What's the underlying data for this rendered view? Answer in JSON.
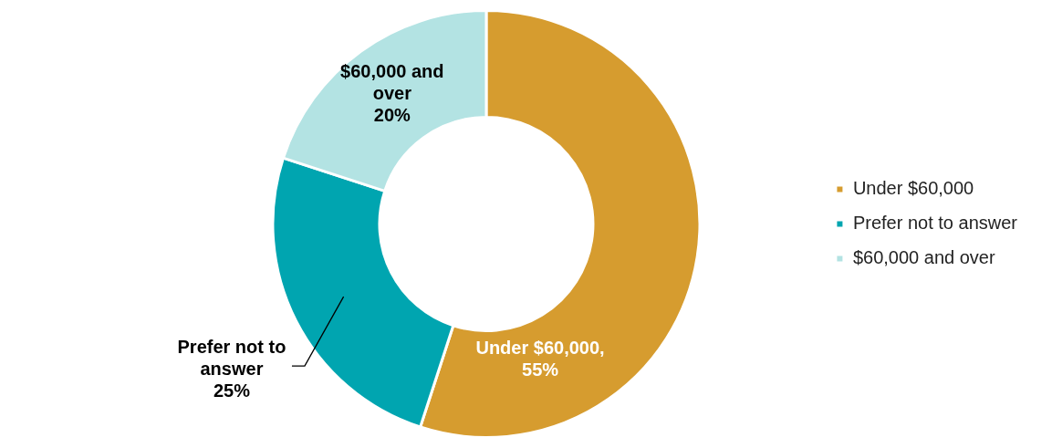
{
  "chart_data": {
    "type": "donut",
    "categories": [
      "Under $60,000",
      "Prefer not to answer",
      "$60,000 and over"
    ],
    "values": [
      55,
      25,
      20
    ],
    "colors": [
      "#d69c2f",
      "#00a5b0",
      "#b3e3e3"
    ],
    "value_labels": [
      "Under $60,000, 55%",
      "Prefer not to answer 25%",
      "$60,000 and over 20%"
    ],
    "legend": "right"
  }
}
